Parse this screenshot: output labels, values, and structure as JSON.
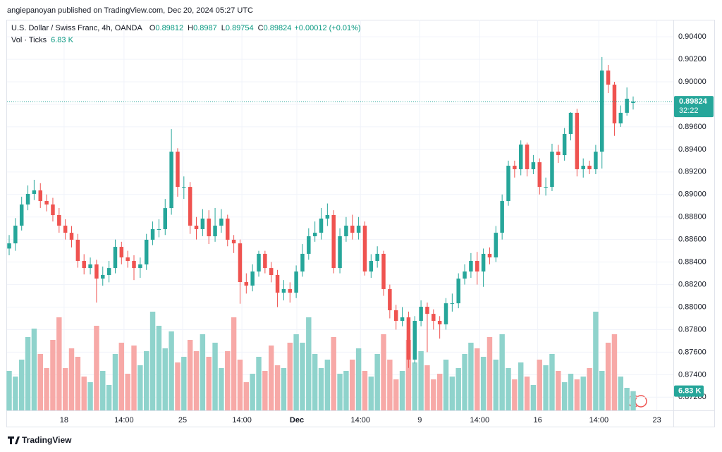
{
  "chart_data": {
    "type": "candlestick",
    "publisher": "angiepanoyan published on TradingView.com, Dec 20, 2024 05:27 UTC",
    "title": "U.S. Dollar / Swiss Franc, 4h, OANDA",
    "ohlc_labels": [
      "O",
      "H",
      "L",
      "C"
    ],
    "change": "+0.00012 (+0.01%)",
    "volume_title": "Vol · Ticks",
    "volume_value_label": "6.83 K",
    "countdown": "32:22",
    "logo": "TradingView",
    "up_color": "#26a69a",
    "down_color": "#ef5350",
    "volume_up_color": "#8fd3cc",
    "volume_down_color": "#f7a9a7",
    "grid": true,
    "ylim": [
      0.87083,
      0.90551
    ],
    "yticks": [
      {
        "value": 0.872,
        "label": "0.87200"
      },
      {
        "value": 0.874,
        "label": "0.87400"
      },
      {
        "value": 0.876,
        "label": "0.87600"
      },
      {
        "value": 0.878,
        "label": "0.87800"
      },
      {
        "value": 0.88,
        "label": "0.88000"
      },
      {
        "value": 0.882,
        "label": "0.88200"
      },
      {
        "value": 0.884,
        "label": "0.88400"
      },
      {
        "value": 0.886,
        "label": "0.88600"
      },
      {
        "value": 0.888,
        "label": "0.88800"
      },
      {
        "value": 0.89,
        "label": "0.89000"
      },
      {
        "value": 0.892,
        "label": "0.89200"
      },
      {
        "value": 0.894,
        "label": "0.89400"
      },
      {
        "value": 0.896,
        "label": "0.89600"
      },
      {
        "value": 0.898,
        "label": "0.89800"
      },
      {
        "value": 0.9,
        "label": "0.90000"
      },
      {
        "value": 0.902,
        "label": "0.90200"
      },
      {
        "value": 0.904,
        "label": "0.90400"
      }
    ],
    "xlim": [
      -0.34,
      106.44
    ],
    "xticks": [
      {
        "value": 8.8,
        "label": "18"
      },
      {
        "value": 18.4,
        "label": "14:00"
      },
      {
        "value": 27.8,
        "label": "25"
      },
      {
        "value": 37.3,
        "label": "14:00"
      },
      {
        "value": 46.1,
        "label": "Dec"
      },
      {
        "value": 56.3,
        "label": "14:00"
      },
      {
        "value": 65.8,
        "label": "9"
      },
      {
        "value": 75.4,
        "label": "14:00"
      },
      {
        "value": 84.7,
        "label": "16"
      },
      {
        "value": 94.5,
        "label": "14:00"
      },
      {
        "value": 103.8,
        "label": "23"
      }
    ],
    "open": [
      0.8852,
      0.88566,
      0.88723,
      0.88911,
      0.89005,
      0.89036,
      0.88942,
      0.88911,
      0.88817,
      0.88723,
      0.8866,
      0.88598,
      0.8841,
      0.88347,
      0.88379,
      0.88253,
      0.88285,
      0.88347,
      0.88535,
      0.88441,
      0.8841,
      0.88347,
      0.88379,
      0.88598,
      0.88692,
      0.88692,
      0.88879,
      0.8938,
      0.89067,
      0.89067,
      0.88723,
      0.88692,
      0.88786,
      0.88629,
      0.88723,
      0.88786,
      0.88598,
      0.88566,
      0.88222,
      0.88191,
      0.88316,
      0.88473,
      0.88347,
      0.88285,
      0.88128,
      0.8816,
      0.88128,
      0.88316,
      0.88473,
      0.88629,
      0.8866,
      0.88786,
      0.88817,
      0.88347,
      0.88629,
      0.88723,
      0.8866,
      0.88723,
      0.88316,
      0.8841,
      0.88473,
      0.8816,
      0.87972,
      0.87878,
      0.87909,
      0.87534,
      0.87878,
      0.88003,
      0.8794,
      0.87878,
      0.87847,
      0.88034,
      0.88034,
      0.88253,
      0.88316,
      0.8841,
      0.88316,
      0.88473,
      0.88441,
      0.8866,
      0.88942,
      0.89255,
      0.89224,
      0.89443,
      0.89224,
      0.89286,
      0.89067,
      0.89067,
      0.8938,
      0.89349,
      0.89537,
      0.89725,
      0.89224,
      0.89255,
      0.89224,
      0.8938,
      0.901,
      0.89975,
      0.89631,
      0.89725,
      0.89812
    ],
    "high": [
      0.8864,
      0.8879,
      0.8898,
      0.8908,
      0.8913,
      0.891,
      0.89,
      0.8897,
      0.8888,
      0.8878,
      0.8872,
      0.8865,
      0.8847,
      0.8844,
      0.8842,
      0.8836,
      0.8841,
      0.886,
      0.8858,
      0.885,
      0.8846,
      0.8844,
      0.8865,
      0.8876,
      0.8878,
      0.8896,
      0.8958,
      0.8941,
      0.8916,
      0.8911,
      0.888,
      0.8887,
      0.8886,
      0.8888,
      0.8887,
      0.8882,
      0.8864,
      0.886,
      0.883,
      0.8838,
      0.885,
      0.885,
      0.884,
      0.8833,
      0.8824,
      0.8822,
      0.8837,
      0.8856,
      0.887,
      0.8876,
      0.8888,
      0.8892,
      0.8886,
      0.887,
      0.888,
      0.8882,
      0.888,
      0.8876,
      0.8847,
      0.8854,
      0.885,
      0.882,
      0.8802,
      0.88,
      0.8796,
      0.8792,
      0.8806,
      0.8804,
      0.8798,
      0.8792,
      0.8808,
      0.8812,
      0.883,
      0.8838,
      0.8848,
      0.8849,
      0.8852,
      0.8853,
      0.8872,
      0.89,
      0.893,
      0.893,
      0.8948,
      0.8946,
      0.8935,
      0.8932,
      0.8915,
      0.8945,
      0.8944,
      0.8959,
      0.8973,
      0.8976,
      0.8932,
      0.893,
      0.8944,
      0.9022,
      0.9015,
      0.9,
      0.8979,
      0.8995,
      0.8987
    ],
    "low": [
      0.8846,
      0.885,
      0.8868,
      0.8886,
      0.8895,
      0.8888,
      0.8885,
      0.8876,
      0.8866,
      0.886,
      0.8853,
      0.8835,
      0.8829,
      0.8829,
      0.8804,
      0.8819,
      0.8822,
      0.883,
      0.8838,
      0.8835,
      0.8824,
      0.8826,
      0.8833,
      0.8855,
      0.8862,
      0.8864,
      0.8882,
      0.8898,
      0.8896,
      0.8865,
      0.886,
      0.8863,
      0.8856,
      0.8858,
      0.8866,
      0.8854,
      0.8848,
      0.8803,
      0.8812,
      0.8814,
      0.8827,
      0.883,
      0.8822,
      0.88,
      0.8806,
      0.8804,
      0.8808,
      0.8827,
      0.8842,
      0.8858,
      0.886,
      0.8872,
      0.883,
      0.883,
      0.8858,
      0.886,
      0.886,
      0.8828,
      0.8826,
      0.8835,
      0.881,
      0.879,
      0.878,
      0.8783,
      0.8746,
      0.875,
      0.8783,
      0.876,
      0.878,
      0.8772,
      0.878,
      0.8796,
      0.8799,
      0.882,
      0.8826,
      0.882,
      0.8818,
      0.8838,
      0.884,
      0.886,
      0.889,
      0.8915,
      0.8917,
      0.8916,
      0.8918,
      0.89,
      0.8899,
      0.8903,
      0.8928,
      0.893,
      0.8948,
      0.8916,
      0.8915,
      0.8918,
      0.8918,
      0.8923,
      0.899,
      0.8952,
      0.896,
      0.897,
      0.89754
    ],
    "close": [
      0.88566,
      0.88723,
      0.88911,
      0.89005,
      0.89036,
      0.88942,
      0.88911,
      0.88817,
      0.88723,
      0.8866,
      0.88598,
      0.8841,
      0.88347,
      0.88379,
      0.88253,
      0.88285,
      0.88347,
      0.88535,
      0.88441,
      0.8841,
      0.88347,
      0.88379,
      0.88598,
      0.88692,
      0.88692,
      0.88879,
      0.8938,
      0.89067,
      0.89067,
      0.88723,
      0.88692,
      0.88786,
      0.88629,
      0.88723,
      0.88786,
      0.88598,
      0.88566,
      0.88222,
      0.88191,
      0.88316,
      0.88473,
      0.88347,
      0.88285,
      0.88128,
      0.8816,
      0.88128,
      0.88316,
      0.88473,
      0.88629,
      0.8866,
      0.88786,
      0.88817,
      0.88347,
      0.88629,
      0.88723,
      0.8866,
      0.88723,
      0.88316,
      0.8841,
      0.88473,
      0.8816,
      0.87972,
      0.87878,
      0.87909,
      0.87534,
      0.87878,
      0.88003,
      0.8794,
      0.87878,
      0.87847,
      0.88034,
      0.88034,
      0.88253,
      0.88316,
      0.8841,
      0.88316,
      0.88473,
      0.88441,
      0.8866,
      0.88942,
      0.89255,
      0.89224,
      0.89443,
      0.89224,
      0.89286,
      0.89067,
      0.89067,
      0.8938,
      0.89349,
      0.89537,
      0.89725,
      0.89224,
      0.89255,
      0.89224,
      0.8938,
      0.901,
      0.89975,
      0.89631,
      0.89725,
      0.8985,
      0.89824
    ],
    "volume": [
      14000,
      12000,
      18000,
      26000,
      29000,
      20000,
      15000,
      25000,
      33000,
      15000,
      22000,
      19000,
      12000,
      10000,
      30000,
      14000,
      9000,
      20000,
      24000,
      13000,
      23000,
      16000,
      21000,
      35000,
      30000,
      22000,
      28000,
      17000,
      19000,
      25000,
      21000,
      27000,
      19000,
      24000,
      15000,
      21000,
      33000,
      18000,
      10000,
      13000,
      19000,
      14000,
      23000,
      16000,
      15000,
      24000,
      27000,
      24000,
      33000,
      20000,
      15000,
      18000,
      26000,
      13000,
      14000,
      18000,
      22000,
      14000,
      12000,
      20000,
      27000,
      18000,
      11000,
      14000,
      25000,
      17000,
      21000,
      16000,
      11000,
      13000,
      18000,
      12000,
      15000,
      20000,
      24000,
      22000,
      19000,
      26000,
      18000,
      27000,
      15000,
      11000,
      17000,
      12000,
      9000,
      18000,
      16000,
      20000,
      14000,
      10000,
      13000,
      11000,
      12000,
      15000,
      35000,
      14000,
      24000,
      27000,
      12000,
      8000,
      6830
    ]
  }
}
